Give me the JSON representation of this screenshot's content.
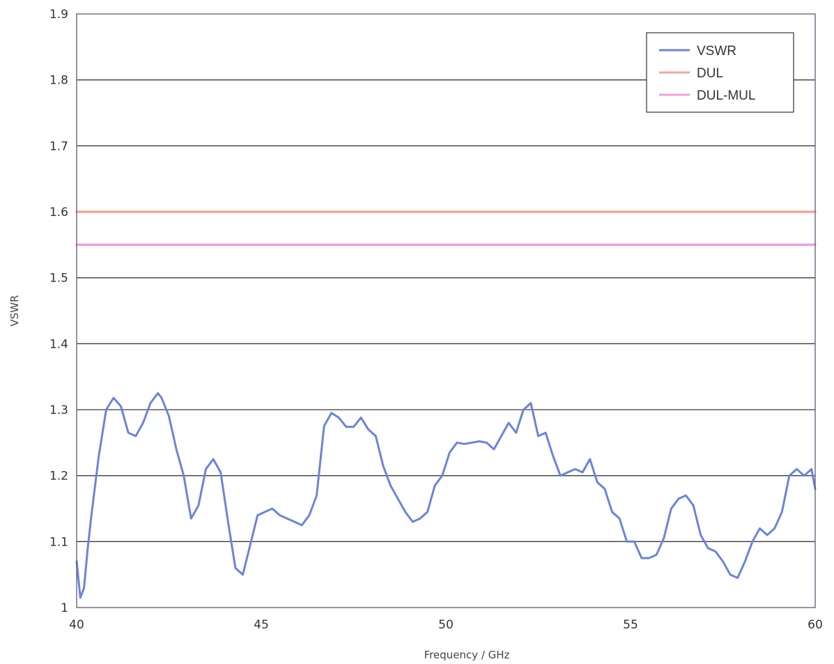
{
  "chart_data": {
    "type": "line",
    "title": "",
    "xlabel": "Frequency / GHz",
    "ylabel": "VSWR",
    "xlim": [
      40,
      60
    ],
    "ylim": [
      1,
      1.9
    ],
    "xticks": [
      40,
      45,
      50,
      55,
      60
    ],
    "yticks": [
      1,
      1.1,
      1.2,
      1.3,
      1.4,
      1.5,
      1.6,
      1.7,
      1.8,
      1.9
    ],
    "xtick_labels": [
      "40",
      "45",
      "50",
      "55",
      "60"
    ],
    "ytick_labels": [
      "1",
      "1.1",
      "1.2",
      "1.3",
      "1.4",
      "1.5",
      "1.6",
      "1.7",
      "1.8",
      "1.9"
    ],
    "grid": true,
    "legend_position": "top-right",
    "series": [
      {
        "name": "VSWR",
        "color": "#6b84d9",
        "x": [
          40.0,
          40.1,
          40.2,
          40.3,
          40.4,
          40.6,
          40.8,
          41.0,
          41.2,
          41.4,
          41.6,
          41.8,
          42.0,
          42.2,
          42.3,
          42.5,
          42.7,
          42.9,
          43.1,
          43.3,
          43.5,
          43.7,
          43.9,
          44.1,
          44.3,
          44.5,
          44.7,
          44.9,
          45.1,
          45.3,
          45.5,
          45.7,
          45.9,
          46.1,
          46.3,
          46.5,
          46.7,
          46.9,
          47.1,
          47.3,
          47.5,
          47.7,
          47.9,
          48.1,
          48.3,
          48.5,
          48.7,
          48.9,
          49.1,
          49.3,
          49.5,
          49.7,
          49.9,
          50.1,
          50.3,
          50.5,
          50.7,
          50.9,
          51.1,
          51.3,
          51.5,
          51.7,
          51.9,
          52.1,
          52.3,
          52.5,
          52.7,
          52.9,
          53.1,
          53.3,
          53.5,
          53.7,
          53.9,
          54.1,
          54.3,
          54.5,
          54.7,
          54.9,
          55.1,
          55.3,
          55.5,
          55.7,
          55.9,
          56.1,
          56.3,
          56.5,
          56.7,
          56.9,
          57.1,
          57.3,
          57.5,
          57.7,
          57.9,
          58.1,
          58.3,
          58.5,
          58.7,
          58.9,
          59.1,
          59.3,
          59.5,
          59.7,
          59.9,
          60.0
        ],
        "y": [
          1.07,
          1.015,
          1.03,
          1.09,
          1.14,
          1.23,
          1.3,
          1.318,
          1.305,
          1.265,
          1.26,
          1.28,
          1.31,
          1.325,
          1.318,
          1.29,
          1.24,
          1.2,
          1.135,
          1.155,
          1.21,
          1.225,
          1.205,
          1.13,
          1.06,
          1.05,
          1.095,
          1.14,
          1.145,
          1.15,
          1.14,
          1.135,
          1.13,
          1.125,
          1.14,
          1.17,
          1.275,
          1.295,
          1.288,
          1.274,
          1.274,
          1.288,
          1.27,
          1.26,
          1.215,
          1.185,
          1.165,
          1.145,
          1.13,
          1.135,
          1.145,
          1.185,
          1.2,
          1.235,
          1.25,
          1.248,
          1.25,
          1.252,
          1.25,
          1.24,
          1.26,
          1.28,
          1.265,
          1.3,
          1.31,
          1.26,
          1.265,
          1.23,
          1.2,
          1.205,
          1.21,
          1.205,
          1.225,
          1.19,
          1.18,
          1.145,
          1.135,
          1.1,
          1.1,
          1.075,
          1.075,
          1.08,
          1.105,
          1.15,
          1.165,
          1.17,
          1.155,
          1.11,
          1.09,
          1.085,
          1.07,
          1.05,
          1.045,
          1.07,
          1.1,
          1.12,
          1.11,
          1.12,
          1.145,
          1.2,
          1.21,
          1.2,
          1.21,
          1.18
        ]
      },
      {
        "name": "DUL",
        "color": "#f0a898",
        "x": [
          40,
          60
        ],
        "y": [
          1.6,
          1.6
        ]
      },
      {
        "name": "DUL-MUL",
        "color": "#f0a0dc",
        "x": [
          40,
          60
        ],
        "y": [
          1.55,
          1.55
        ]
      }
    ]
  }
}
